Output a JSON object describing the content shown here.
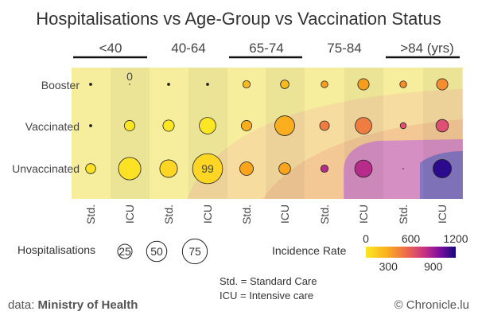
{
  "chart_data": {
    "type": "bubble-matrix",
    "title": "Hospitalisations vs Age-Group vs Vaccination Status",
    "age_groups": [
      "<40",
      "40-64",
      "65-74",
      "75-84",
      ">84 (yrs)"
    ],
    "care_types": [
      "Std.",
      "ICU"
    ],
    "column_labels": [
      "Std.",
      "ICU",
      "Std.",
      "ICU",
      "Std.",
      "ICU",
      "Std.",
      "ICU",
      "Std.",
      "ICU"
    ],
    "rows": [
      "Booster",
      "Vaccinated",
      "Unvaccinated"
    ],
    "hospitalisations": [
      [
        1,
        0,
        1,
        1,
        6,
        8,
        5,
        14,
        5,
        14
      ],
      [
        1,
        12,
        14,
        30,
        12,
        43,
        10,
        30,
        4,
        17
      ],
      [
        11,
        55,
        34,
        99,
        20,
        15,
        6,
        33,
        0,
        37
      ]
    ],
    "incidence_rate": [
      [
        0,
        0,
        0,
        0,
        150,
        150,
        250,
        250,
        300,
        300
      ],
      [
        0,
        0,
        0,
        0,
        200,
        200,
        350,
        350,
        500,
        500
      ],
      [
        20,
        20,
        60,
        60,
        230,
        230,
        700,
        700,
        1150,
        1150
      ]
    ],
    "labels": [
      {
        "row": 0,
        "col": 1,
        "text": "0"
      },
      {
        "row": 2,
        "col": 3,
        "text": "99"
      }
    ],
    "size_legend": {
      "title": "Hospitalisations",
      "values": [
        25,
        50,
        75
      ]
    },
    "color_legend": {
      "title": "Incidence Rate",
      "range": [
        0,
        1200
      ],
      "ticks_top": [
        0,
        600,
        1200
      ],
      "ticks_bottom": [
        300,
        900
      ],
      "colors": [
        "#fde725",
        "#f9a11b",
        "#e3536e",
        "#b3278e",
        "#6a0a9c",
        "#1a0a8a"
      ]
    },
    "notes": [
      "Std. = Standard Care",
      "ICU = Intensive care"
    ],
    "source_prefix": "data: ",
    "source_name": "Ministry of Health",
    "credit": "© Chronicle.lu"
  }
}
